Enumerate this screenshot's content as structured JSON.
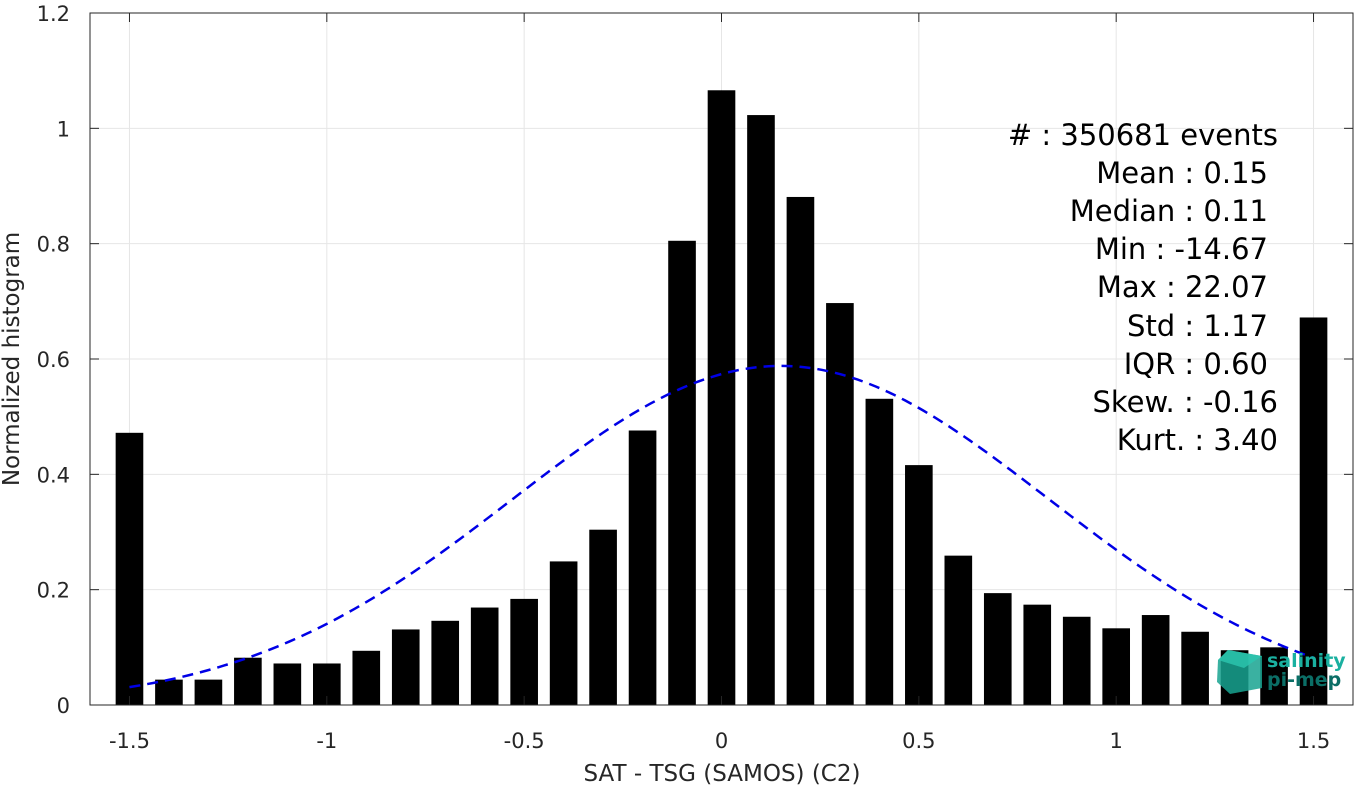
{
  "chart_data": {
    "type": "bar",
    "xlabel": "SAT - TSG (SAMOS) (C2)",
    "ylabel": "Normalized histogram",
    "xlim": [
      -1.6,
      1.6
    ],
    "ylim": [
      0,
      1.2
    ],
    "xticks": [
      -1.5,
      -1,
      -0.5,
      0,
      0.5,
      1,
      1.5
    ],
    "yticks": [
      0,
      0.2,
      0.4,
      0.6,
      0.8,
      1,
      1.2
    ],
    "xtick_labels": [
      "-1.5",
      "-1",
      "-0.5",
      "0",
      "0.5",
      "1",
      "1.5"
    ],
    "ytick_labels": [
      "0",
      "0.2",
      "0.4",
      "0.6",
      "0.8",
      "1",
      "1.2"
    ],
    "grid": true,
    "bar_color": "#000000",
    "bins": [
      {
        "x": -1.5,
        "y": 0.472
      },
      {
        "x": -1.4,
        "y": 0.044
      },
      {
        "x": -1.3,
        "y": 0.044
      },
      {
        "x": -1.2,
        "y": 0.082
      },
      {
        "x": -1.1,
        "y": 0.072
      },
      {
        "x": -1.0,
        "y": 0.072
      },
      {
        "x": -0.9,
        "y": 0.094
      },
      {
        "x": -0.8,
        "y": 0.131
      },
      {
        "x": -0.7,
        "y": 0.146
      },
      {
        "x": -0.6,
        "y": 0.169
      },
      {
        "x": -0.5,
        "y": 0.184
      },
      {
        "x": -0.4,
        "y": 0.249
      },
      {
        "x": -0.3,
        "y": 0.304
      },
      {
        "x": -0.2,
        "y": 0.476
      },
      {
        "x": -0.1,
        "y": 0.805
      },
      {
        "x": 0.0,
        "y": 1.066
      },
      {
        "x": 0.1,
        "y": 1.023
      },
      {
        "x": 0.2,
        "y": 0.881
      },
      {
        "x": 0.3,
        "y": 0.697
      },
      {
        "x": 0.4,
        "y": 0.531
      },
      {
        "x": 0.5,
        "y": 0.416
      },
      {
        "x": 0.6,
        "y": 0.259
      },
      {
        "x": 0.7,
        "y": 0.194
      },
      {
        "x": 0.8,
        "y": 0.174
      },
      {
        "x": 0.9,
        "y": 0.153
      },
      {
        "x": 1.0,
        "y": 0.133
      },
      {
        "x": 1.1,
        "y": 0.156
      },
      {
        "x": 1.2,
        "y": 0.127
      },
      {
        "x": 1.3,
        "y": 0.095
      },
      {
        "x": 1.4,
        "y": 0.1
      },
      {
        "x": 1.5,
        "y": 0.672
      }
    ],
    "fit_curve": {
      "style": "dashed",
      "color": "#0000e6",
      "mean": 0.15,
      "std": 0.68,
      "peak": 0.588,
      "x_range": [
        -1.5,
        1.5
      ]
    },
    "stats": [
      "#  : 350681 events",
      "Mean : 0.15",
      "Median : 0.11",
      "Min : -14.67",
      "Max : 22.07",
      "Std : 1.17",
      "IQR : 0.60",
      "Skew. : -0.16",
      "Kurt. : 3.40"
    ]
  },
  "logo": {
    "line1": "salinity",
    "line2": "pi-mep",
    "color1": "#1ab0a0",
    "color2": "#0b6e66"
  }
}
